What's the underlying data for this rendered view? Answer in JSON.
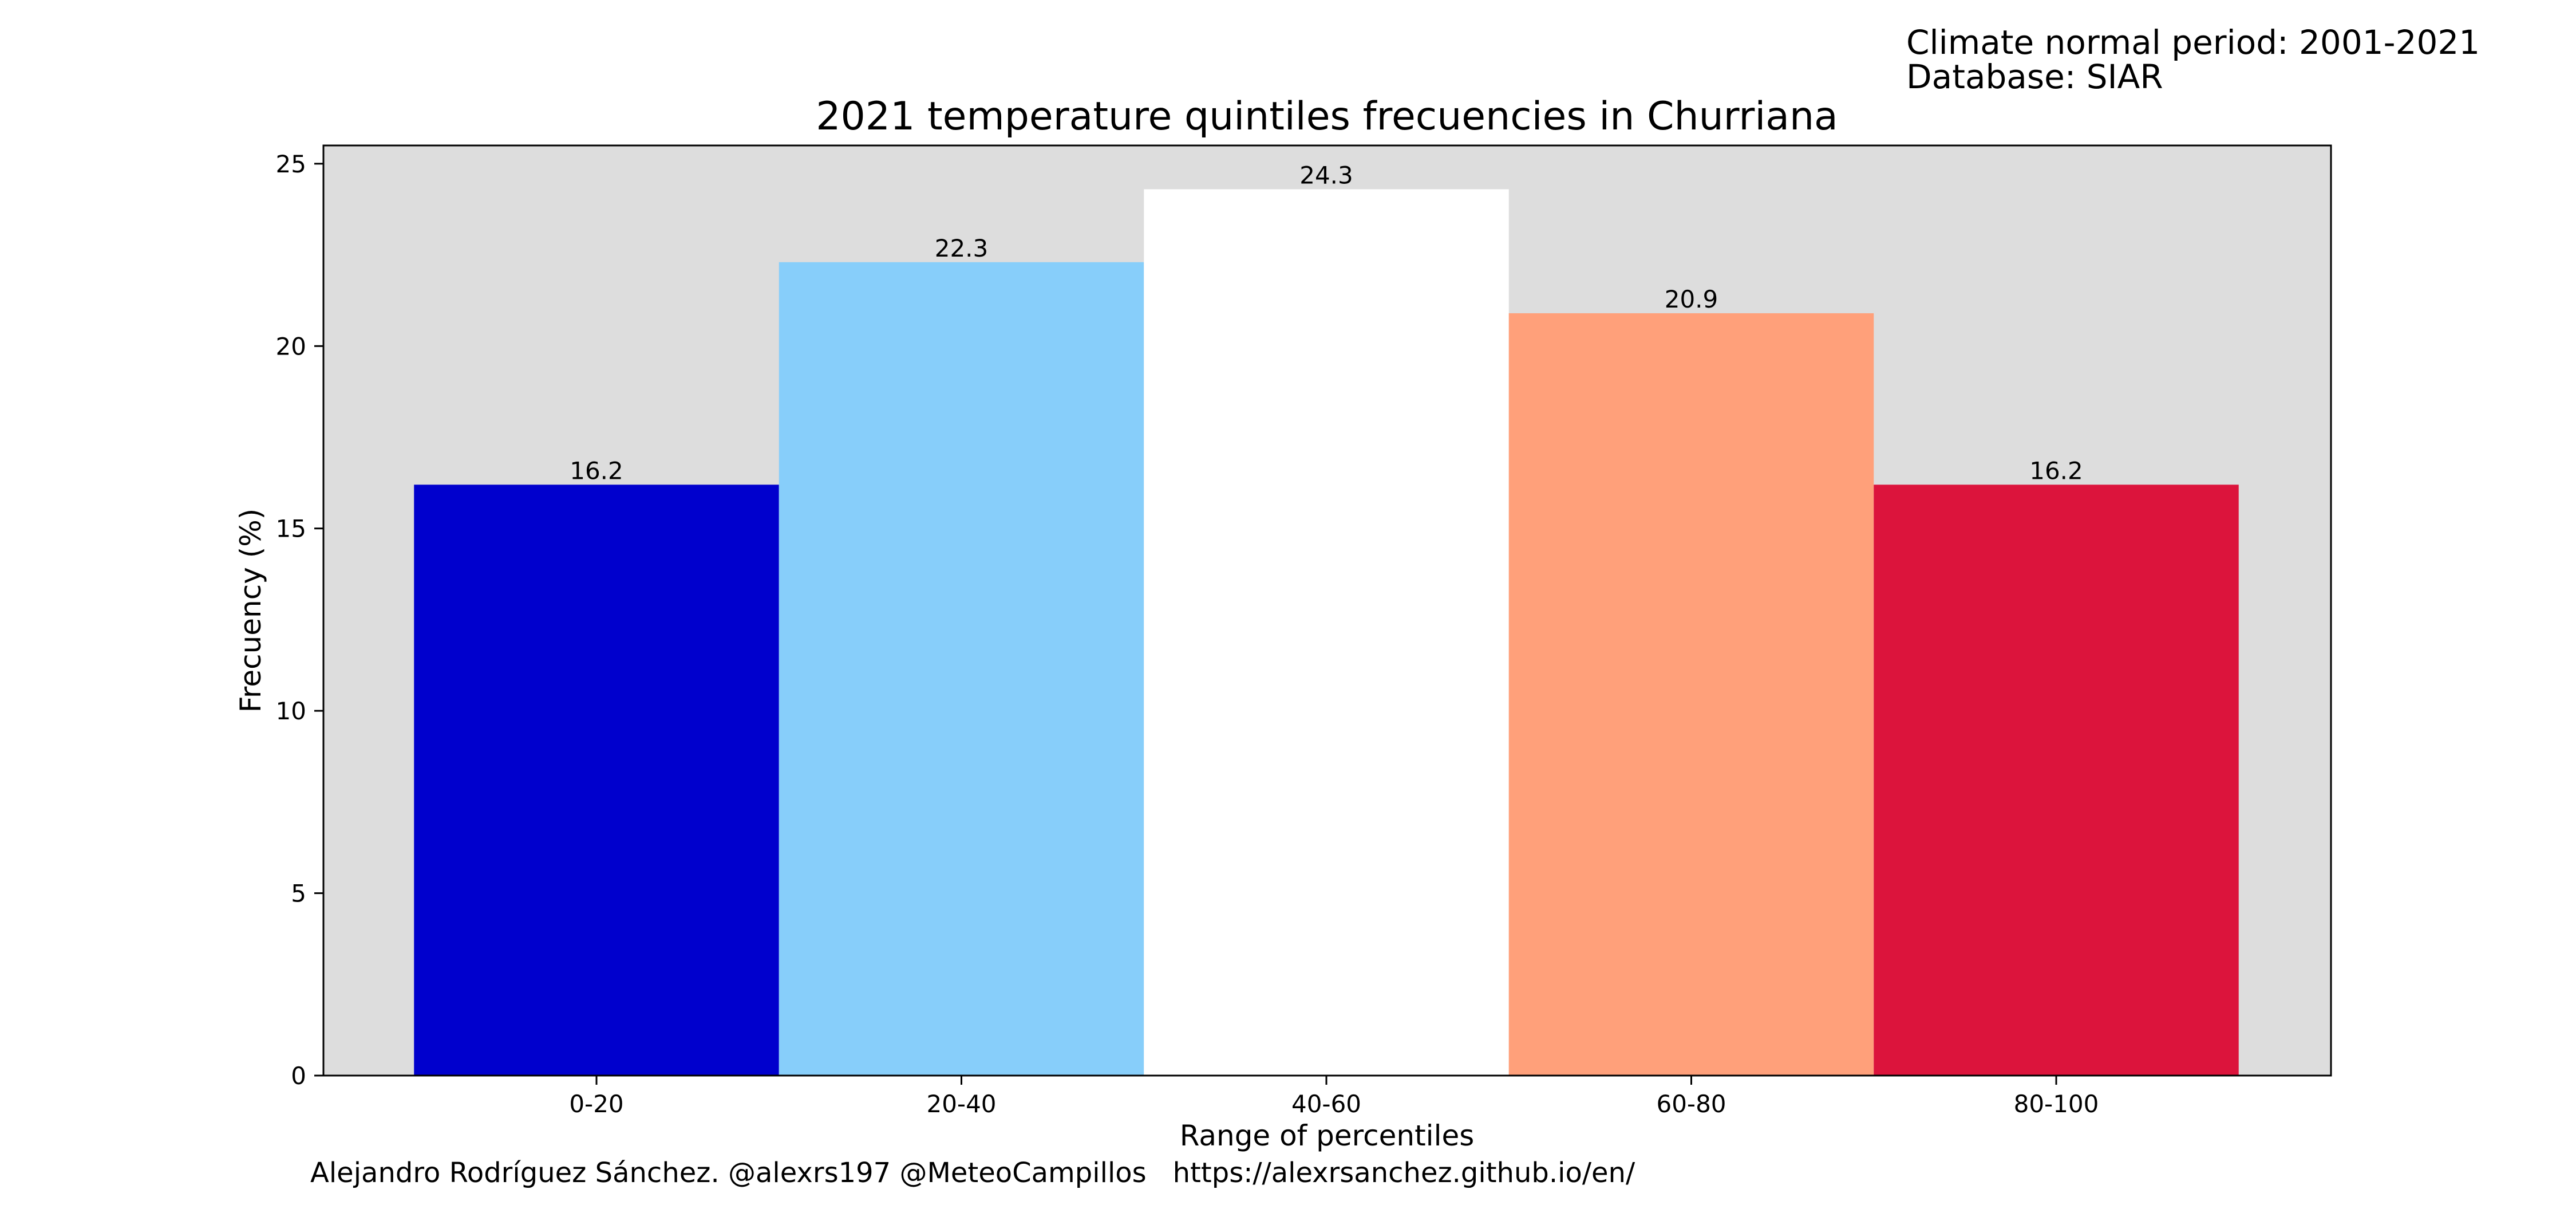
{
  "info": {
    "climate_normal": "Climate normal period: 2001-2021",
    "database": "Database: SIAR"
  },
  "footer": {
    "author": "Alejandro Rodríguez Sánchez. @alexrs197 @MeteoCampillos",
    "url": "https://alexrsanchez.github.io/en/"
  },
  "chart_data": {
    "type": "bar",
    "title": "2021 temperature quintiles frecuencies in Churriana",
    "xlabel": "Range of percentiles",
    "ylabel": "Frecuency (%)",
    "categories": [
      "0-20",
      "20-40",
      "40-60",
      "60-80",
      "80-100"
    ],
    "values": [
      16.2,
      22.3,
      24.3,
      20.9,
      16.2
    ],
    "value_labels": [
      "16.2",
      "22.3",
      "24.3",
      "20.9",
      "16.2"
    ],
    "colors": [
      "#0000CD",
      "#87CEFA",
      "#FFFFFF",
      "#FFA07A",
      "#DC143C"
    ],
    "ylim": [
      0,
      25.5
    ],
    "yticks": [
      0,
      5,
      10,
      15,
      20,
      25
    ],
    "background": "#DDDDDD",
    "grid": false,
    "legend": "none"
  }
}
